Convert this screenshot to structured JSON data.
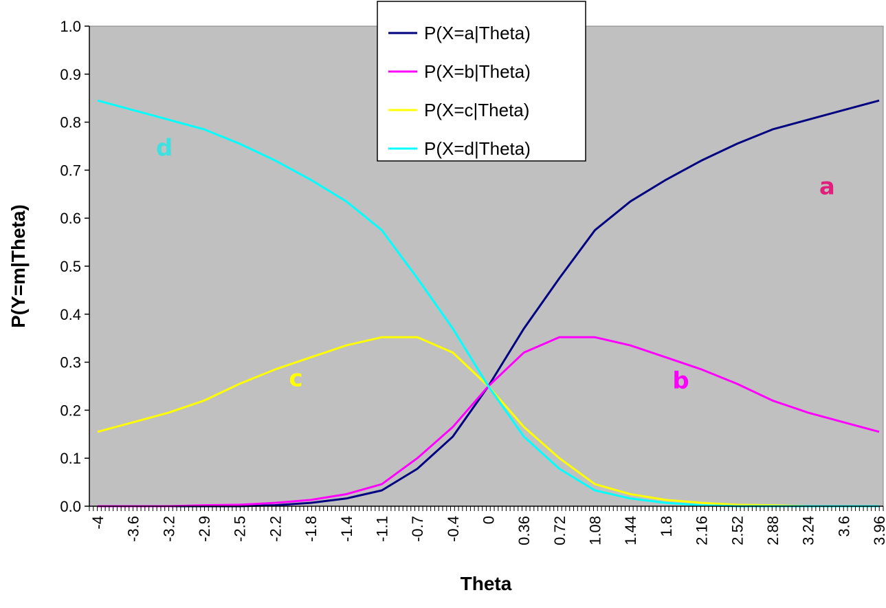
{
  "chart_data": {
    "type": "line",
    "title": "",
    "xlabel": "Theta",
    "ylabel": "P(Y=m|Theta)",
    "xlim": [
      -4,
      3.96
    ],
    "ylim": [
      0,
      1.0
    ],
    "y_ticks": [
      "0.0",
      "0.1",
      "0.2",
      "0.3",
      "0.4",
      "0.5",
      "0.6",
      "0.7",
      "0.8",
      "0.9",
      "1.0"
    ],
    "x_tick_labels": [
      "-4",
      "-3.6",
      "-3.2",
      "-2.9",
      "-2.5",
      "-2.2",
      "-1.8",
      "-1.4",
      "-1.1",
      "-0.7",
      "-0.4",
      "0",
      "0.36",
      "0.72",
      "1.08",
      "1.44",
      "1.8",
      "2.16",
      "2.52",
      "2.88",
      "3.24",
      "3.6",
      "3.96"
    ],
    "grid": false,
    "legend_position": "top-center",
    "plot_background": "#c0c0c0",
    "x": [
      -4,
      -3.6,
      -3.2,
      -2.9,
      -2.5,
      -2.2,
      -1.8,
      -1.4,
      -1.1,
      -0.7,
      -0.4,
      0,
      0.36,
      0.72,
      1.08,
      1.44,
      1.8,
      2.16,
      2.52,
      2.88,
      3.24,
      3.6,
      3.96
    ],
    "series": [
      {
        "name": "P(X=a|Theta)",
        "color": "#000080",
        "values": [
          0.0,
          0.0,
          0.0,
          0.0,
          0.0,
          0.002,
          0.007,
          0.016,
          0.033,
          0.078,
          0.145,
          0.25,
          0.37,
          0.475,
          0.575,
          0.635,
          0.68,
          0.72,
          0.755,
          0.785,
          0.805,
          0.825,
          0.845
        ]
      },
      {
        "name": "P(X=b|Theta)",
        "color": "#ff00ff",
        "values": [
          0.0,
          0.0,
          0.0,
          0.002,
          0.003,
          0.007,
          0.013,
          0.025,
          0.046,
          0.1,
          0.165,
          0.25,
          0.32,
          0.352,
          0.352,
          0.335,
          0.31,
          0.285,
          0.255,
          0.22,
          0.195,
          0.175,
          0.155
        ]
      },
      {
        "name": "P(X=c|Theta)",
        "color": "#ffff00",
        "values": [
          0.155,
          0.175,
          0.195,
          0.22,
          0.255,
          0.285,
          0.31,
          0.335,
          0.352,
          0.352,
          0.32,
          0.25,
          0.165,
          0.1,
          0.046,
          0.025,
          0.013,
          0.007,
          0.003,
          0.002,
          0.0,
          0.0,
          0.0
        ]
      },
      {
        "name": "P(X=d|Theta)",
        "color": "#00ffff",
        "values": [
          0.845,
          0.825,
          0.805,
          0.785,
          0.755,
          0.72,
          0.68,
          0.635,
          0.575,
          0.475,
          0.37,
          0.25,
          0.145,
          0.078,
          0.033,
          0.016,
          0.007,
          0.002,
          0.0,
          0.0,
          0.0,
          0.0,
          0.0
        ]
      }
    ],
    "annotations": [
      {
        "text": "a",
        "x": 3.43,
        "y": 0.65,
        "color": "#e0207a"
      },
      {
        "text": "b",
        "x": 1.94,
        "y": 0.245,
        "color": "#ff00ff"
      },
      {
        "text": "c",
        "x": -1.98,
        "y": 0.25,
        "color": "#ffff00",
        "x_is_index_note": ""
      },
      {
        "text": "d",
        "x": -3.32,
        "y": 0.73,
        "color": "#40e0e0"
      }
    ]
  }
}
